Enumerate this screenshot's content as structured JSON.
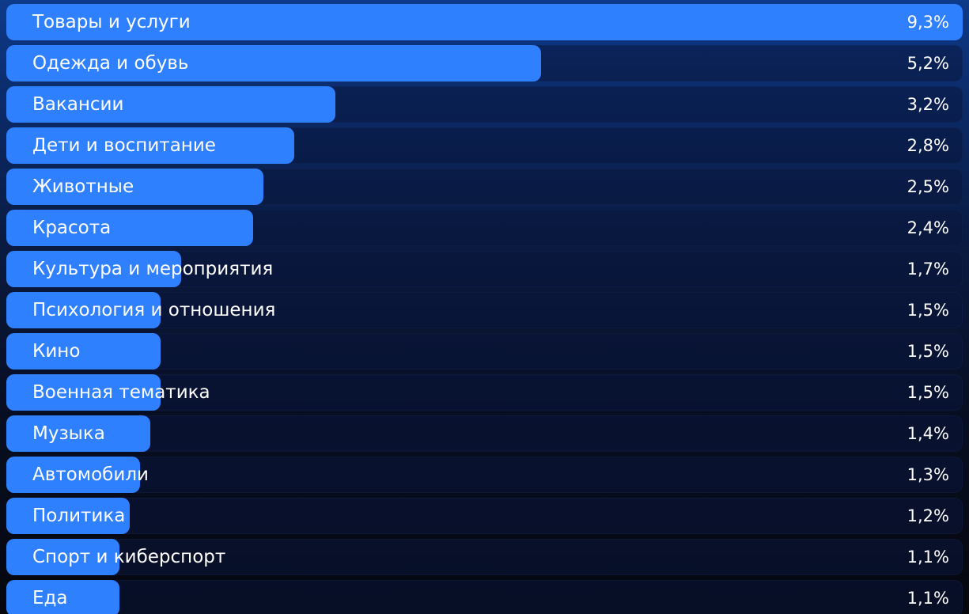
{
  "colors": {
    "bar": "#2f80ff",
    "text": "#ffffff",
    "background_top": "#0d3a8a",
    "background_bottom": "#06070d"
  },
  "chart_data": {
    "type": "bar",
    "orientation": "horizontal",
    "categories": [
      "Товары и услуги",
      "Одежда и обувь",
      "Вакансии",
      "Дети и воспитание",
      "Животные",
      "Красота",
      "Культура и мероприятия",
      "Психология и отношения",
      "Кино",
      "Военная тематика",
      "Музыка",
      "Автомобили",
      "Политика",
      "Спорт и киберспорт",
      "Еда"
    ],
    "values": [
      9.3,
      5.2,
      3.2,
      2.8,
      2.5,
      2.4,
      1.7,
      1.5,
      1.5,
      1.5,
      1.4,
      1.3,
      1.2,
      1.1,
      1.1
    ],
    "value_labels": [
      "9,3%",
      "5,2%",
      "3,2%",
      "2,8%",
      "2,5%",
      "2,4%",
      "1,7%",
      "1,5%",
      "1,5%",
      "1,5%",
      "1,4%",
      "1,3%",
      "1,2%",
      "1,1%",
      "1,1%"
    ],
    "unit": "%",
    "xlim": [
      0,
      9.3
    ],
    "grid": false,
    "legend": "none"
  }
}
